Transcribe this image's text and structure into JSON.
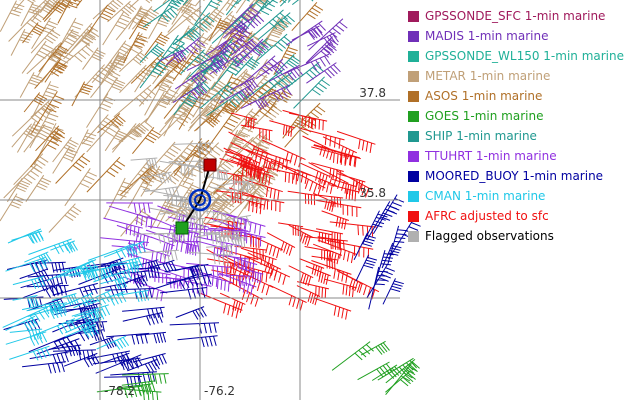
{
  "map": {
    "grid_labels": {
      "lat": [
        "37.8",
        "35.8"
      ],
      "lon": [
        "-78.2",
        "-76.2"
      ]
    },
    "legend": [
      {
        "label": "GPSSONDE_SFC 1-min marine",
        "color": "#a01a5c"
      },
      {
        "label": "MADIS 1-min marine",
        "color": "#7030b8"
      },
      {
        "label": "GPSSONDE_WL150 1-min marine",
        "color": "#20b098"
      },
      {
        "label": "METAR 1-min marine",
        "color": "#c0a078"
      },
      {
        "label": "ASOS 1-min marine",
        "color": "#b07028"
      },
      {
        "label": "GOES 1-min marine",
        "color": "#20a020"
      },
      {
        "label": "SHIP 1-min marine",
        "color": "#209890"
      },
      {
        "label": "TTUHRT 1-min marine",
        "color": "#9030e0"
      },
      {
        "label": "MOORED_BUOY 1-min marine",
        "color": "#0000a0"
      },
      {
        "label": "CMAN 1-min marine",
        "color": "#20c8e8"
      },
      {
        "label": "AFRC adjusted to sfc",
        "color": "#f01010"
      },
      {
        "label": "Flagged observations",
        "color": "#b0b0b0",
        "text_color": "#000000"
      }
    ]
  }
}
